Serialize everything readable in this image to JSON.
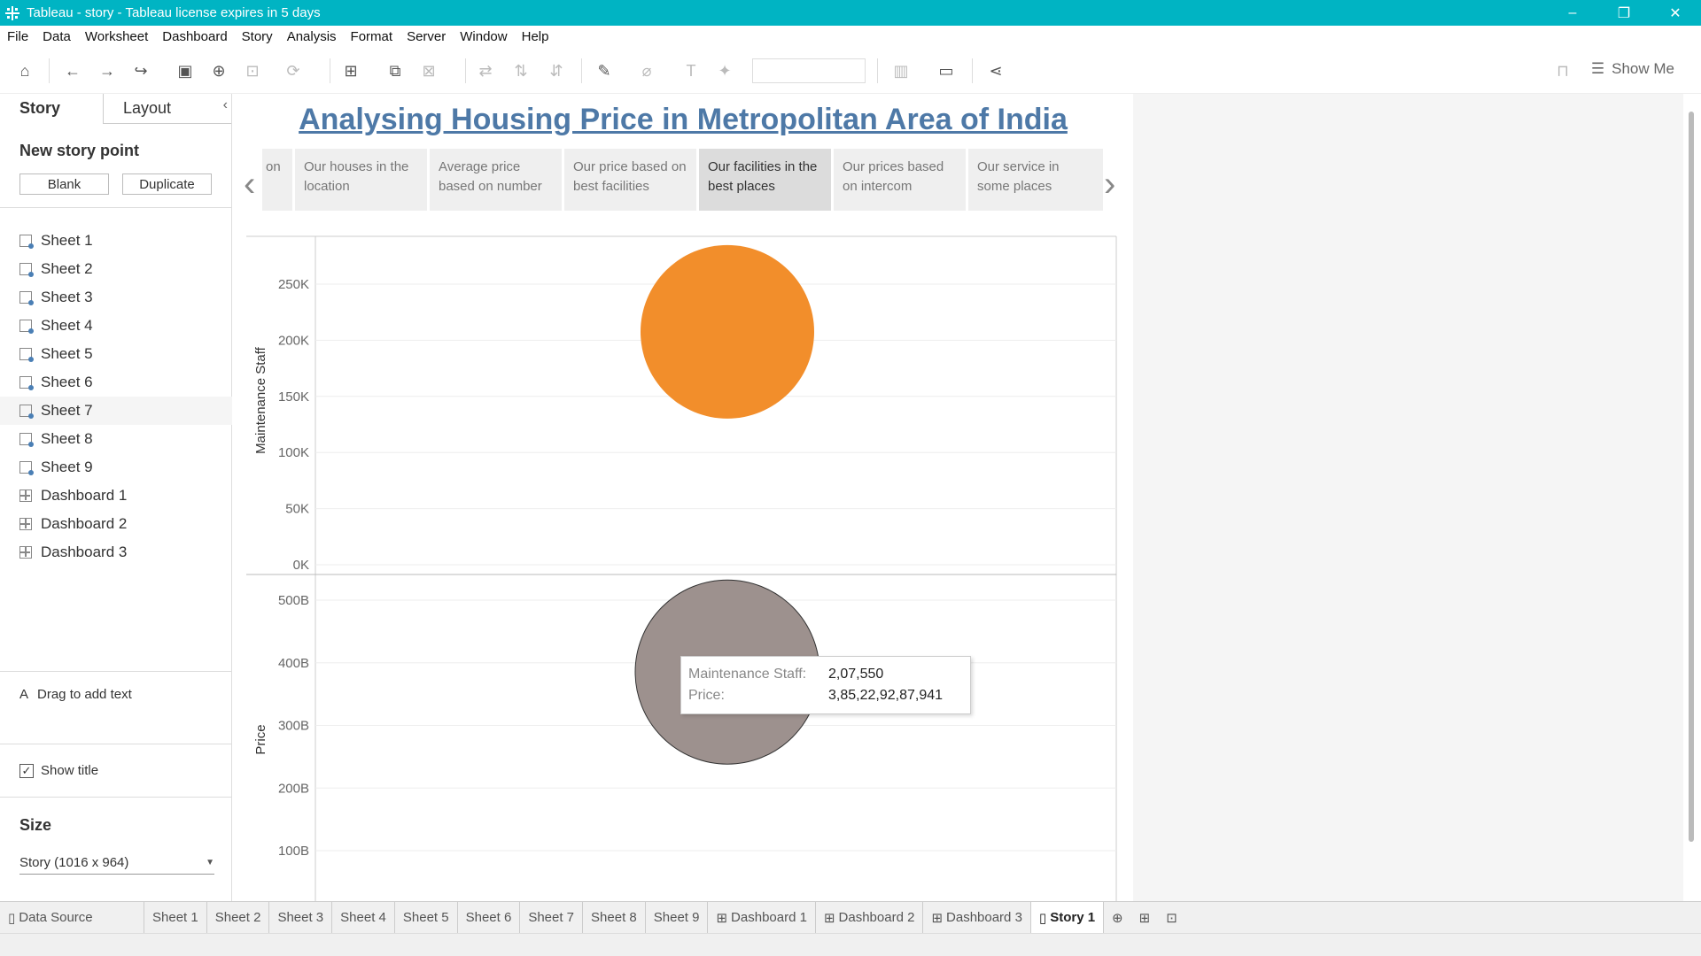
{
  "window": {
    "title": "Tableau - story - Tableau license expires in 5 days",
    "controls": [
      "–",
      "❐",
      "✕"
    ]
  },
  "menu": [
    "File",
    "Data",
    "Worksheet",
    "Dashboard",
    "Story",
    "Analysis",
    "Format",
    "Server",
    "Window",
    "Help"
  ],
  "toolbar": {
    "show_me": "Show Me"
  },
  "left_panel": {
    "tabs": [
      "Story",
      "Layout"
    ],
    "new_story_point": "New story point",
    "blank_button": "Blank",
    "duplicate_button": "Duplicate",
    "sheets": [
      "Sheet 1",
      "Sheet 2",
      "Sheet 3",
      "Sheet 4",
      "Sheet 5",
      "Sheet 6",
      "Sheet 7",
      "Sheet 8",
      "Sheet 9"
    ],
    "dashboards": [
      "Dashboard 1",
      "Dashboard 2",
      "Dashboard 3"
    ],
    "drag_text": "Drag to add text",
    "show_title": "Show title",
    "size_label": "Size",
    "size_value": "Story (1016 x 964)"
  },
  "story": {
    "title": "Analysing Housing Price in Metropolitan Area of India",
    "points": [
      {
        "text": "on"
      },
      {
        "text": "Our houses in the location"
      },
      {
        "text": "Average price based on number"
      },
      {
        "text": "Our price based on best facilities"
      },
      {
        "text": "Our facilities in the best places",
        "active": true
      },
      {
        "text": "Our prices based on intercom"
      },
      {
        "text": "Our service in some places"
      }
    ]
  },
  "chart_data": [
    {
      "type": "scatter",
      "ylabel": "Maintenance Staff",
      "yticks": [
        "0K",
        "50K",
        "100K",
        "150K",
        "200K",
        "250K"
      ],
      "ylim": [
        0,
        280000
      ],
      "points": [
        {
          "y": 207550,
          "color": "#f28e2b"
        }
      ]
    },
    {
      "type": "scatter",
      "ylabel": "Price",
      "yticks": [
        "100B",
        "200B",
        "300B",
        "400B",
        "500B"
      ],
      "ylim": [
        0,
        530000000000
      ],
      "points": [
        {
          "y": 385229287941,
          "color": "#9d918e"
        }
      ]
    }
  ],
  "tooltip": {
    "k1": "Maintenance Staff:",
    "v1": "2,07,550",
    "k2": "Price:",
    "v2": "3,85,22,92,87,941"
  },
  "bottom_tabs": [
    "Data Source",
    "Sheet 1",
    "Sheet 2",
    "Sheet 3",
    "Sheet 4",
    "Sheet 5",
    "Sheet 6",
    "Sheet 7",
    "Sheet 8",
    "Sheet 9",
    "Dashboard 1",
    "Dashboard 2",
    "Dashboard 3",
    "Story 1"
  ]
}
